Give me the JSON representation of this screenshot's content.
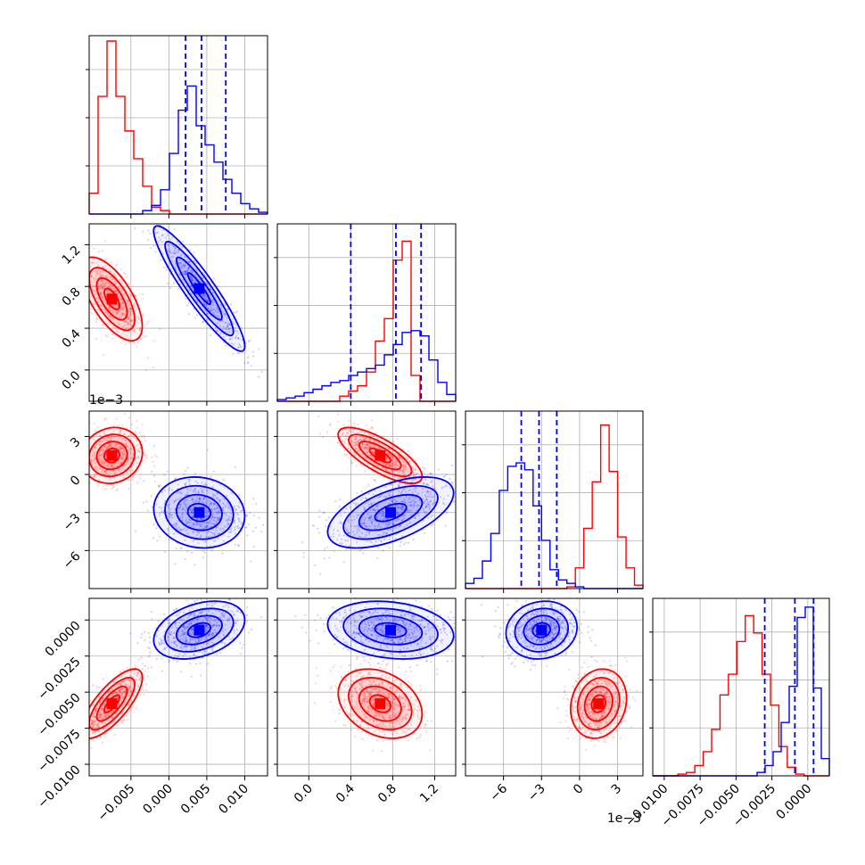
{
  "chart_data": {
    "type": "corner",
    "grid": true,
    "colors": {
      "red": "#ff0000",
      "blue": "#0000ff"
    },
    "offset_label": "1e−3",
    "parameters": [
      {
        "scale_label": "",
        "range": [
          -0.0105,
          0.013
        ],
        "ticks": [
          -0.005,
          0.0,
          0.005,
          0.01
        ],
        "tick_labels": [
          "−0.005",
          "0.000",
          "0.005",
          "0.010"
        ],
        "red": {
          "mean": -0.0075,
          "sd": 0.002
        },
        "blue": {
          "mean": 0.004,
          "sd": 0.003
        }
      },
      {
        "scale_label": "",
        "range": [
          -0.3,
          1.4
        ],
        "ticks": [
          0.0,
          0.4,
          0.8,
          1.2
        ],
        "tick_labels": [
          "0.0",
          "0.4",
          "0.8",
          "1.2"
        ],
        "red": {
          "mean": 0.68,
          "sd": 0.2
        },
        "blue": {
          "mean": 0.78,
          "sd": 0.3
        }
      },
      {
        "scale_label": "1e−3",
        "range": [
          -9.0,
          5.0
        ],
        "ticks": [
          -6,
          -3,
          0,
          3
        ],
        "tick_labels": [
          "−6",
          "−3",
          "0",
          "3"
        ],
        "red": {
          "mean": 1.5,
          "sd": 1.1
        },
        "blue": {
          "mean": -3.0,
          "sd": 1.4
        }
      },
      {
        "scale_label": "",
        "range": [
          -0.0108,
          0.0015
        ],
        "ticks": [
          -0.01,
          -0.0075,
          -0.005,
          -0.0025,
          0.0
        ],
        "tick_labels": [
          "−0.0100",
          "−0.0075",
          "−0.0050",
          "−0.0025",
          "0.0000"
        ],
        "red": {
          "mean": -0.0058,
          "sd": 0.0012
        },
        "blue": {
          "mean": -0.0007,
          "sd": 0.001
        }
      }
    ],
    "blue_quantiles": [
      [
        0.0022,
        0.0043,
        0.0075
      ],
      [
        0.4,
        0.83,
        1.07
      ],
      [
        -4.6,
        -3.2,
        -1.8
      ],
      [
        -0.003,
        -0.0009,
        0.0004
      ]
    ],
    "red_histograms": [
      [
        0.12,
        0.68,
        1.0,
        0.68,
        0.48,
        0.32,
        0.16,
        0.04,
        0.02,
        0.0,
        0.0,
        0.0,
        0.0,
        0.0,
        0.0,
        0.0,
        0.0,
        0.0,
        0.0,
        0.0
      ],
      [
        0,
        0,
        0,
        0,
        0,
        0,
        0,
        0.03,
        0.06,
        0.09,
        0.17,
        0.35,
        0.48,
        0.82,
        0.93,
        0.15,
        0.0,
        0.0,
        0.0,
        0.0
      ],
      [
        0,
        0,
        0,
        0,
        0,
        0,
        0,
        0,
        0,
        0,
        0,
        0,
        0.01,
        0.12,
        0.35,
        0.62,
        0.95,
        0.68,
        0.3,
        0.12,
        0.02
      ],
      [
        0,
        0,
        0,
        0.01,
        0.02,
        0.06,
        0.14,
        0.27,
        0.47,
        0.59,
        0.78,
        0.93,
        0.83,
        0.59,
        0.41,
        0.17,
        0.05,
        0.01,
        0,
        0,
        0
      ]
    ],
    "blue_histograms": [
      [
        0,
        0,
        0,
        0,
        0,
        0,
        0.02,
        0.05,
        0.14,
        0.35,
        0.6,
        0.74,
        0.51,
        0.4,
        0.3,
        0.2,
        0.12,
        0.06,
        0.03,
        0.01
      ],
      [
        0.01,
        0.02,
        0.03,
        0.05,
        0.07,
        0.09,
        0.11,
        0.12,
        0.15,
        0.17,
        0.19,
        0.21,
        0.27,
        0.33,
        0.4,
        0.41,
        0.38,
        0.24,
        0.11,
        0.04
      ],
      [
        0.03,
        0.06,
        0.16,
        0.32,
        0.57,
        0.71,
        0.73,
        0.69,
        0.48,
        0.28,
        0.11,
        0.05,
        0.03,
        0.01,
        0,
        0,
        0,
        0,
        0,
        0,
        0
      ],
      [
        0,
        0,
        0,
        0,
        0,
        0,
        0,
        0,
        0,
        0,
        0,
        0,
        0,
        0.02,
        0.06,
        0.14,
        0.31,
        0.52,
        0.92,
        0.98,
        0.51,
        0.1
      ]
    ]
  }
}
